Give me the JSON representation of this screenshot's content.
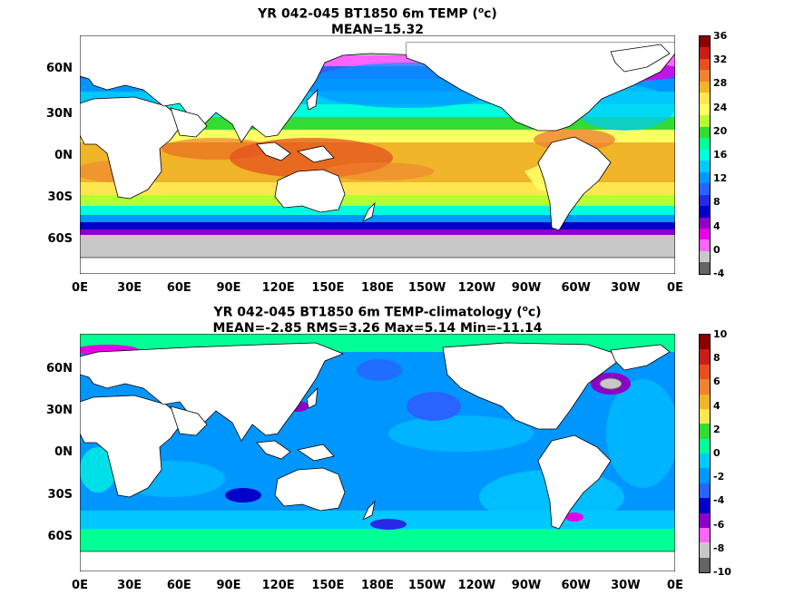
{
  "top": {
    "title_line1": "YR 042-045 BT1850 6m TEMP (",
    "title_sup": "o",
    "title_unit": "c)",
    "title_line2": "MEAN=15.32",
    "lat_labels": [
      "60N",
      "30N",
      "0N",
      "30S",
      "60S"
    ],
    "lon_labels": [
      "0E",
      "30E",
      "60E",
      "90E",
      "120E",
      "150E",
      "180E",
      "150W",
      "120W",
      "90W",
      "60W",
      "30W",
      "0E"
    ],
    "colorbar_labels": [
      "36",
      "32",
      "28",
      "24",
      "20",
      "16",
      "12",
      "8",
      "4",
      "0",
      "-4"
    ],
    "colorbar_colors": [
      "#8b0000",
      "#c81e14",
      "#e6501e",
      "#f08232",
      "#f0b428",
      "#ffe650",
      "#ffff64",
      "#b4ff32",
      "#32dc32",
      "#00ff96",
      "#00ffdc",
      "#00c8ff",
      "#0096ff",
      "#2864ff",
      "#2828e6",
      "#0000c8",
      "#8c00c8",
      "#e600e6",
      "#ff64ff",
      "#c8c8c8",
      "#646464"
    ]
  },
  "bottom": {
    "title_line1": "YR 042-045 BT1850 6m TEMP-climatology (",
    "title_sup": "o",
    "title_unit": "c)",
    "title_line2": "MEAN=-2.85   RMS=3.26   Max=5.14   Min=-11.14",
    "lat_labels": [
      "60N",
      "30N",
      "0N",
      "30S",
      "60S"
    ],
    "lon_labels": [
      "0E",
      "30E",
      "60E",
      "90E",
      "120E",
      "150E",
      "180E",
      "150W",
      "120W",
      "90W",
      "60W",
      "30W",
      "0E"
    ],
    "colorbar_labels": [
      "10",
      "8",
      "6",
      "4",
      "2",
      "0",
      "-2",
      "-4",
      "-6",
      "-8",
      "-10"
    ],
    "colorbar_colors": [
      "#8b0000",
      "#c81e14",
      "#e6501e",
      "#f08232",
      "#f0b428",
      "#ffe650",
      "#32dc32",
      "#00ff96",
      "#00c8ff",
      "#0096ff",
      "#2864ff",
      "#0000c8",
      "#8c00c8",
      "#ff64ff",
      "#c8c8c8",
      "#646464"
    ]
  },
  "colors": {
    "land": "#ffffff",
    "ice": "#c8c8c8",
    "coast": "#000000"
  }
}
